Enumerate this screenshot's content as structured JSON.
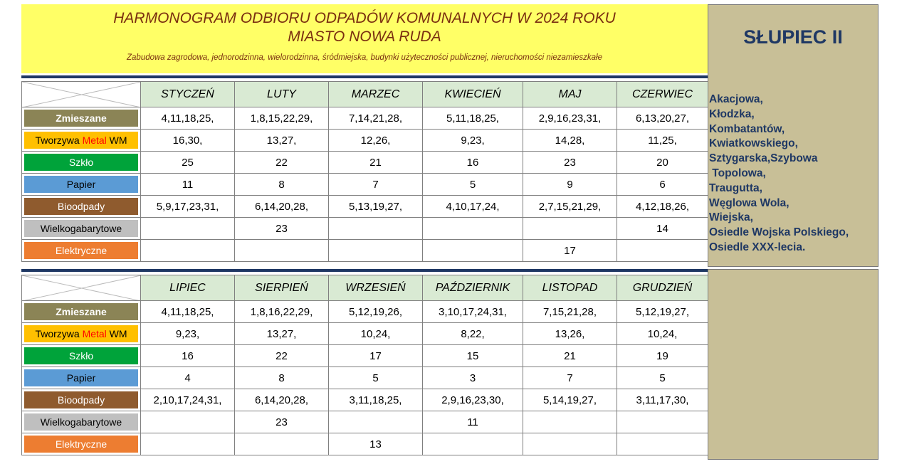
{
  "header": {
    "title_line1": "HARMONOGRAM ODBIORU  ODPADÓW  KOMUNALNYCH W 2024 ROKU",
    "title_line2": "MIASTO NOWA RUDA",
    "subtitle": "Zabudowa zagrodowa, jednorodzinna, wielorodzinna, śródmiejska, budynki użyteczności publicznej, nieruchomości niezamieszkałe"
  },
  "colors": {
    "header_bg": "#ffff66",
    "title_text": "#7a2e10",
    "month_header_bg": "#d9ead3",
    "sidebar_bg": "#c8bf97",
    "sidebar_text": "#1f3864"
  },
  "categories": [
    {
      "label": "Zmieszane",
      "bg": "#8b8456",
      "color": "#ffffff",
      "bold": true
    },
    {
      "label_parts": [
        "Tworzywa ",
        "Metal",
        " WM"
      ],
      "part_colors": [
        "#000000",
        "#ff0000",
        "#000000"
      ],
      "bg": "#ffc000",
      "color": "#000000"
    },
    {
      "label": "Szkło",
      "bg": "#00a33a",
      "color": "#ffffff"
    },
    {
      "label": "Papier",
      "bg": "#5b9bd5",
      "color": "#000000"
    },
    {
      "label": "Bioodpady",
      "bg": "#8f5b2e",
      "color": "#ffffff"
    },
    {
      "label": "Wielkogabarytowe",
      "bg": "#bfbfbf",
      "color": "#000000"
    },
    {
      "label": "Elektryczne",
      "bg": "#ed7d31",
      "color": "#ffffff"
    }
  ],
  "top_table": {
    "months": [
      "STYCZEŃ",
      "LUTY",
      "MARZEC",
      "KWIECIEŃ",
      "MAJ",
      "CZERWIEC"
    ],
    "rows": [
      [
        "4,11,18,25,",
        "1,8,15,22,29,",
        "7,14,21,28,",
        "5,11,18,25,",
        "2,9,16,23,31,",
        "6,13,20,27,"
      ],
      [
        "16,30,",
        "13,27,",
        "12,26,",
        "9,23,",
        "14,28,",
        "11,25,"
      ],
      [
        "25",
        "22",
        "21",
        "16",
        "23",
        "20"
      ],
      [
        "11",
        "8",
        "7",
        "5",
        "9",
        "6"
      ],
      [
        "5,9,17,23,31,",
        "6,14,20,28,",
        "5,13,19,27,",
        "4,10,17,24,",
        "2,7,15,21,29,",
        "4,12,18,26,"
      ],
      [
        "",
        "23",
        "",
        "",
        "",
        "14"
      ],
      [
        "",
        "",
        "",
        "",
        "17",
        ""
      ]
    ]
  },
  "bottom_table": {
    "months": [
      "LIPIEC",
      "SIERPIEŃ",
      "WRZESIEŃ",
      "PAŹDZIERNIK",
      "LISTOPAD",
      "GRUDZIEŃ"
    ],
    "rows": [
      [
        "4,11,18,25,",
        "1,8,16,22,29,",
        "5,12,19,26,",
        "3,10,17,24,31,",
        "7,15,21,28,",
        "5,12,19,27,"
      ],
      [
        "9,23,",
        "13,27,",
        "10,24,",
        "8,22,",
        "13,26,",
        "10,24,"
      ],
      [
        "16",
        "22",
        "17",
        "15",
        "21",
        "19"
      ],
      [
        "4",
        "8",
        "5",
        "3",
        "7",
        "5"
      ],
      [
        "2,10,17,24,31,",
        "6,14,20,28,",
        "3,11,18,25,",
        "2,9,16,23,30,",
        "5,14,19,27,",
        "3,11,17,30,"
      ],
      [
        "",
        "23",
        "",
        "11",
        "",
        ""
      ],
      [
        "",
        "",
        "13",
        "",
        "",
        ""
      ]
    ]
  },
  "sidebar": {
    "name": "SŁUPIEC II",
    "streets": [
      "Akacjowa,",
      "Kłodzka,",
      "Kombatantów,",
      "Kwiatkowskiego,",
      "Sztygarska,Szybowa",
      " Topolowa,",
      "Traugutta,",
      "Węglowa Wola,",
      "Wiejska,",
      "Osiedle Wojska Polskiego,",
      "Osiedle XXX-lecia."
    ]
  }
}
